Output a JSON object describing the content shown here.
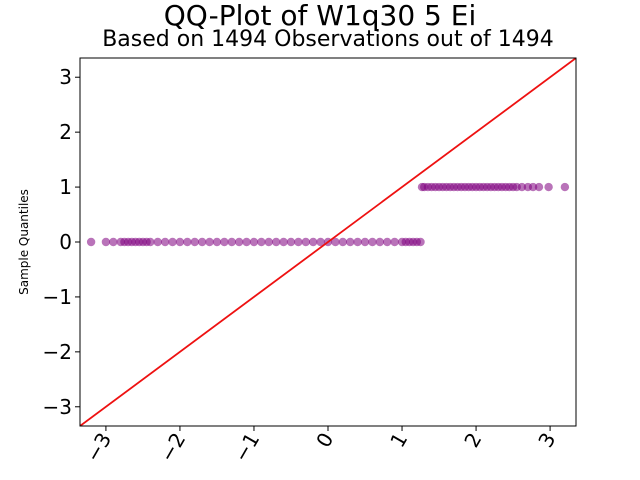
{
  "chart_data": {
    "type": "scatter",
    "title": "QQ-Plot of W1q30 5 Ei",
    "subtitle": "Based on 1494 Observations out of 1494",
    "xlabel": "",
    "ylabel": "Sample Quantiles",
    "xlim": [
      -3.35,
      3.35
    ],
    "ylim": [
      -3.35,
      3.35
    ],
    "xticks": [
      -3,
      -2,
      -1,
      0,
      1,
      2,
      3
    ],
    "yticks": [
      -3,
      -2,
      -1,
      0,
      1,
      2,
      3
    ],
    "xtick_labels": [
      "−3",
      "−2",
      "−1",
      "0",
      "1",
      "2",
      "3"
    ],
    "ytick_labels": [
      "−3",
      "−2",
      "−1",
      "0",
      "1",
      "2",
      "3"
    ],
    "grid": false,
    "reference_line": {
      "x": [
        -3.35,
        3.35
      ],
      "y": [
        -3.35,
        3.35
      ],
      "color": "#ee1111"
    },
    "marker_color": "#800080",
    "series": [
      {
        "group": "zeros",
        "y": 0,
        "x": [
          -3.2,
          -3.0,
          -2.9,
          -2.8,
          -2.75,
          -2.7,
          -2.65,
          -2.6,
          -2.55,
          -2.5,
          -2.45,
          -2.4,
          -2.3,
          -2.2,
          -2.1,
          -2.0,
          -1.9,
          -1.8,
          -1.7,
          -1.6,
          -1.5,
          -1.4,
          -1.3,
          -1.2,
          -1.1,
          -1.0,
          -0.9,
          -0.8,
          -0.7,
          -0.6,
          -0.5,
          -0.4,
          -0.3,
          -0.2,
          -0.1,
          0.0,
          0.1,
          0.2,
          0.3,
          0.4,
          0.5,
          0.6,
          0.7,
          0.8,
          0.9,
          1.0,
          1.05,
          1.1,
          1.15,
          1.2,
          1.25
        ]
      },
      {
        "group": "ones",
        "y": 1,
        "x": [
          1.27,
          1.3,
          1.35,
          1.4,
          1.45,
          1.5,
          1.55,
          1.6,
          1.65,
          1.7,
          1.75,
          1.8,
          1.85,
          1.9,
          1.95,
          2.0,
          2.05,
          2.1,
          2.15,
          2.2,
          2.25,
          2.3,
          2.35,
          2.4,
          2.45,
          2.5,
          2.55,
          2.62,
          2.7,
          2.77,
          2.85,
          2.98,
          3.2
        ]
      }
    ]
  }
}
